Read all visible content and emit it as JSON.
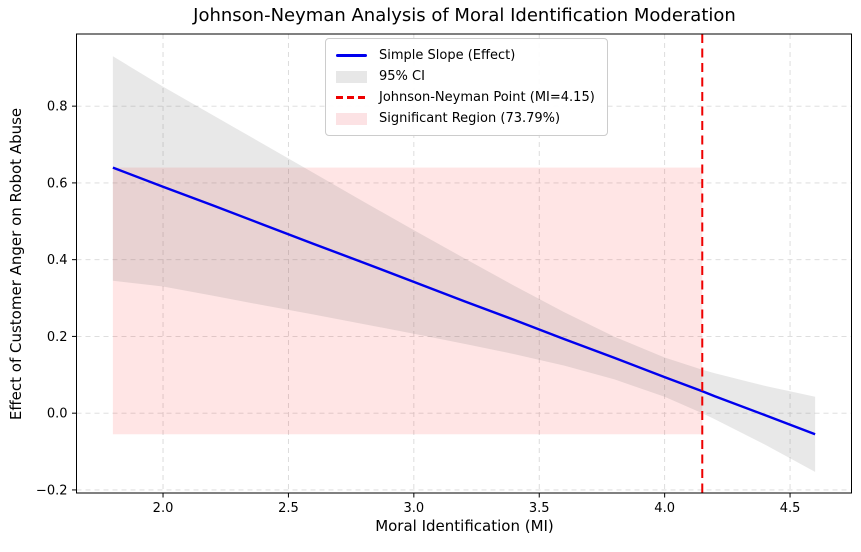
{
  "chart_data": {
    "type": "line",
    "title": "Johnson-Neyman Analysis of Moral Identification Moderation",
    "xlabel": "Moral Identification (MI)",
    "ylabel": "Effect of Customer Anger on Robot Abuse",
    "xlim": [
      1.655,
      4.745
    ],
    "ylim": [
      -0.208,
      0.988
    ],
    "xticks": [
      2.0,
      2.5,
      3.0,
      3.5,
      4.0,
      4.5
    ],
    "xtick_labels": [
      "2.0",
      "2.5",
      "3.0",
      "3.5",
      "4.0",
      "4.5"
    ],
    "yticks": [
      -0.2,
      0.0,
      0.2,
      0.4,
      0.6,
      0.8
    ],
    "ytick_labels": [
      "−0.2",
      "0.0",
      "0.2",
      "0.4",
      "0.6",
      "0.8"
    ],
    "grid": true,
    "x": [
      1.8,
      2.0,
      2.2,
      2.4,
      2.6,
      2.8,
      3.0,
      3.2,
      3.4,
      3.6,
      3.8,
      4.0,
      4.15,
      4.2,
      4.4,
      4.6
    ],
    "series": [
      {
        "name": "Simple Slope (Effect)",
        "type": "line",
        "color": "#0000ee",
        "width": 2.4,
        "values": [
          0.64,
          0.59,
          0.541,
          0.491,
          0.441,
          0.392,
          0.342,
          0.292,
          0.243,
          0.193,
          0.144,
          0.094,
          0.057,
          0.044,
          -0.005,
          -0.055
        ]
      },
      {
        "name": "95% CI",
        "type": "band",
        "color": "#808080",
        "opacity": 0.18,
        "upper": [
          0.93,
          0.851,
          0.776,
          0.701,
          0.626,
          0.551,
          0.477,
          0.404,
          0.332,
          0.263,
          0.199,
          0.145,
          0.113,
          0.104,
          0.071,
          0.043
        ],
        "lower": [
          0.345,
          0.33,
          0.306,
          0.281,
          0.257,
          0.232,
          0.207,
          0.181,
          0.154,
          0.124,
          0.088,
          0.043,
          0.0,
          -0.016,
          -0.082,
          -0.153
        ]
      },
      {
        "name": "Johnson-Neyman Point (MI=4.15)",
        "type": "vline",
        "x": 4.15,
        "color": "#ee0000",
        "width": 2,
        "dash": "9 5.5"
      },
      {
        "name": "Significant Region (73.79%)",
        "type": "rect",
        "x0": 1.8,
        "x1": 4.15,
        "y0": -0.055,
        "y1": 0.64,
        "color": "#ff0000",
        "opacity": 0.1
      }
    ],
    "jn_point_mi": 4.15,
    "significant_region_percent": 73.79,
    "legend": {
      "position": "upper-left",
      "items": [
        {
          "label": "Simple Slope (Effect)",
          "swatch": "line",
          "color": "#0000ee"
        },
        {
          "label": "95% CI",
          "swatch": "patch",
          "color": "#e7e7e7"
        },
        {
          "label": "Johnson-Neyman Point (MI=4.15)",
          "swatch": "dash",
          "color": "#ee0000"
        },
        {
          "label": "Significant Region (73.79%)",
          "swatch": "patch",
          "color": "#fce2e4"
        }
      ]
    },
    "colors": {
      "grid": "#d9d9d9",
      "spine": "#000000",
      "text": "#000000",
      "background": "#ffffff"
    }
  }
}
